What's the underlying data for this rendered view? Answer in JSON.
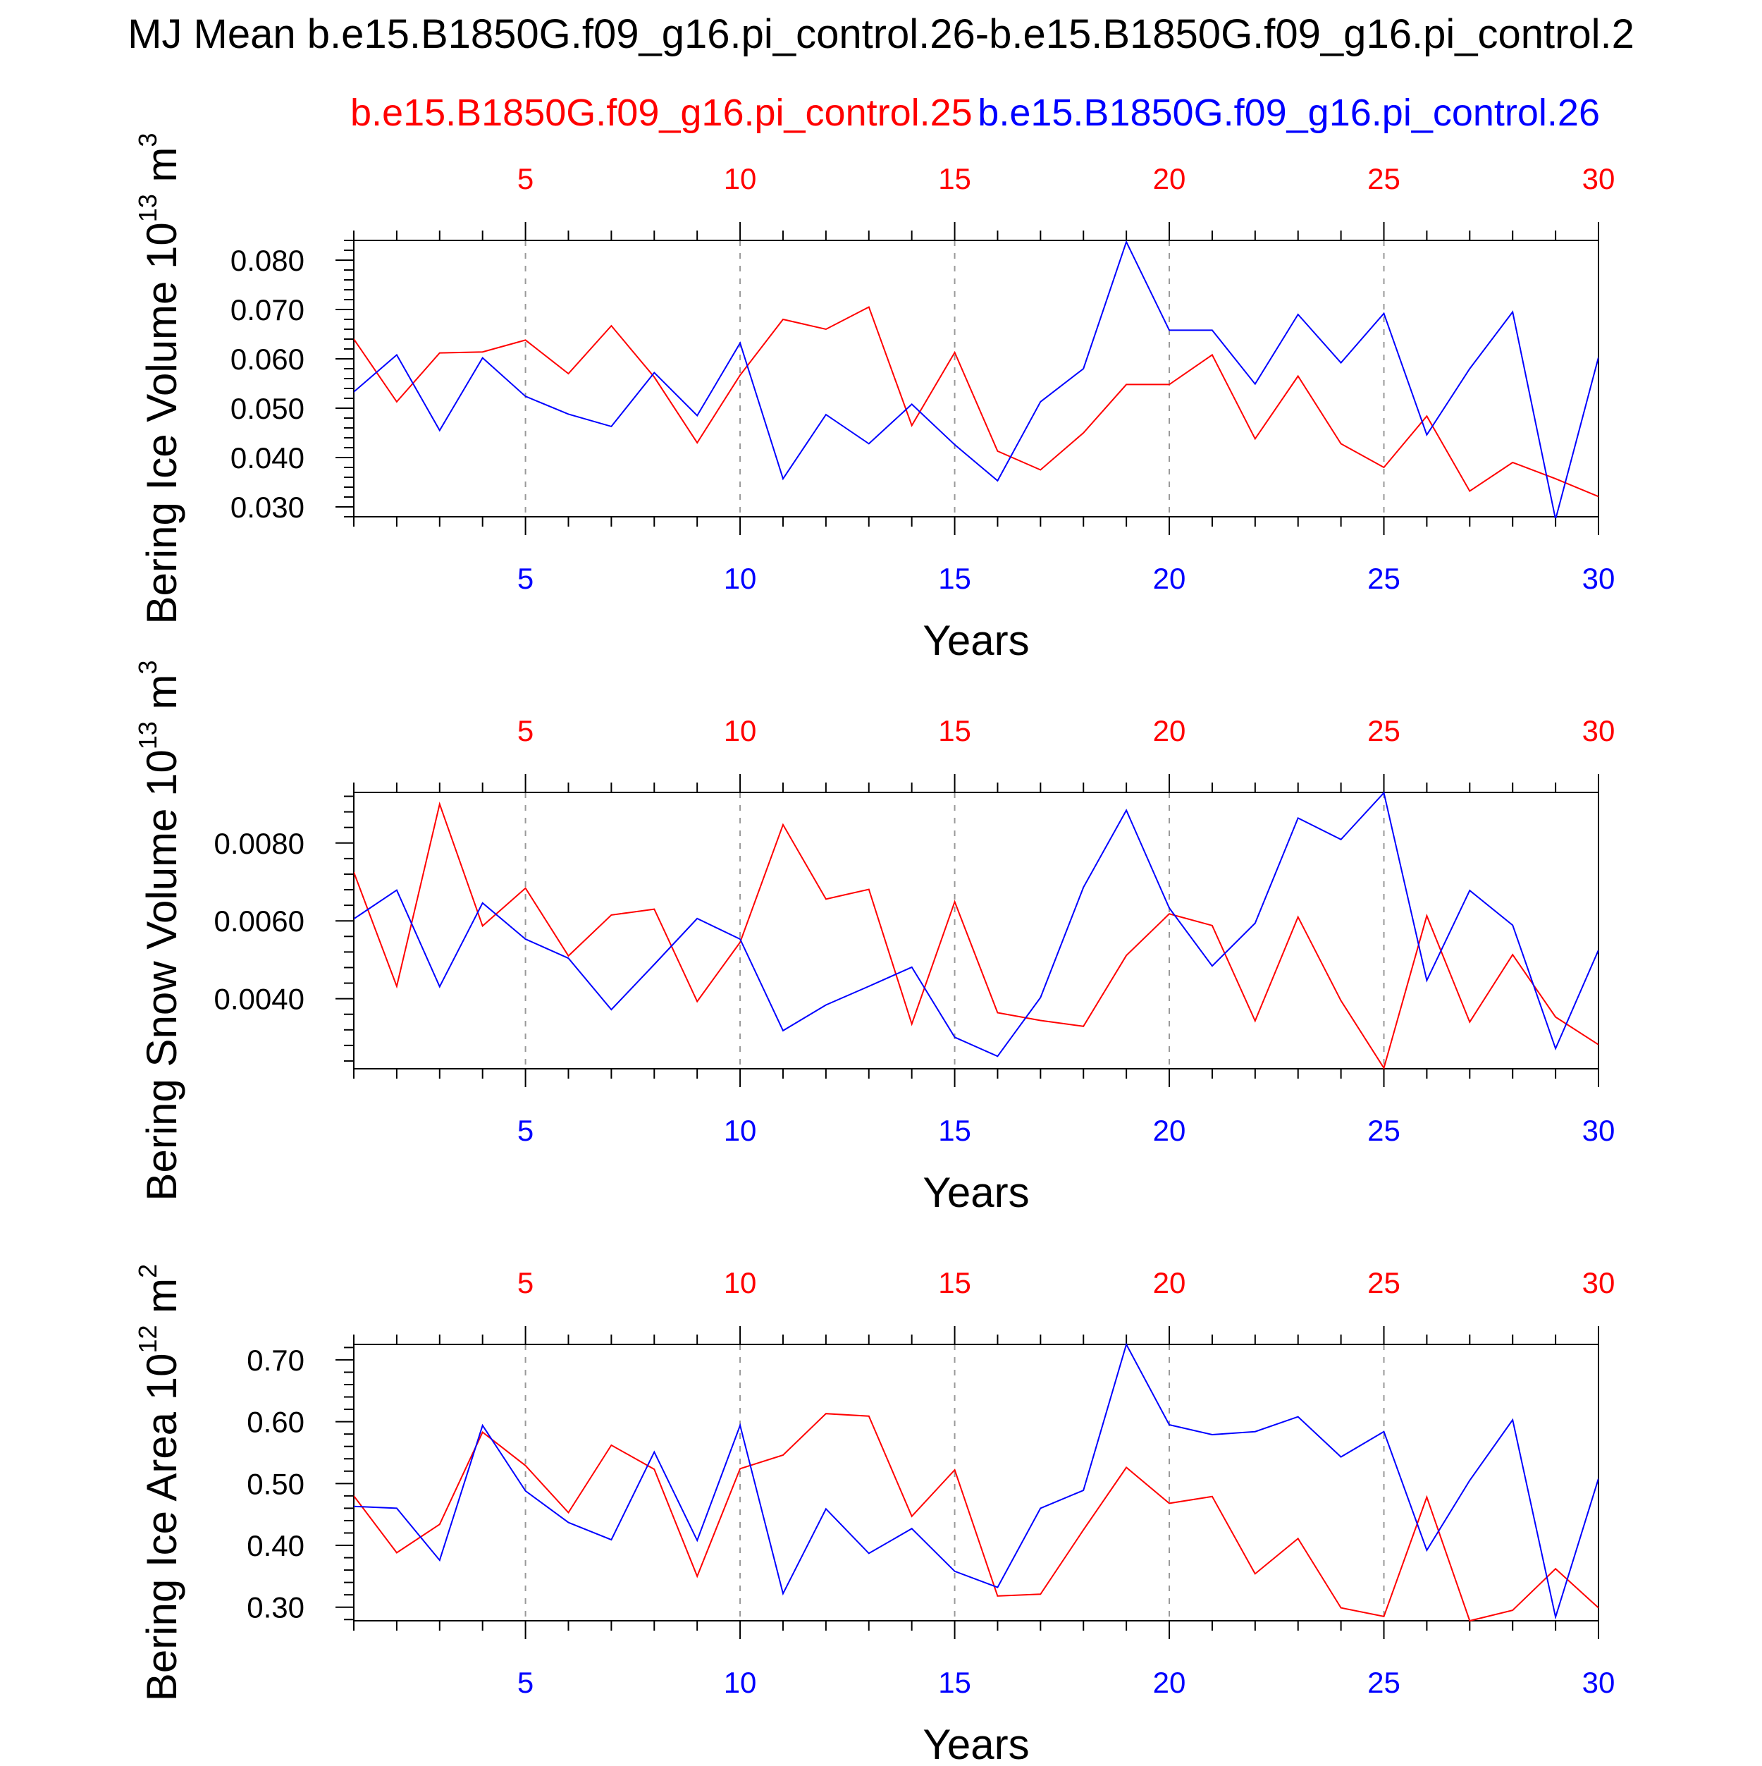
{
  "title": "MJ Mean b.e15.B1850G.f09_g16.pi_control.26-b.e15.B1850G.f09_g16.pi_control.2",
  "legend": {
    "series_a": "b.e15.B1850G.f09_g16.pi_control.25",
    "series_b": "b.e15.B1850G.f09_g16.pi_control.26"
  },
  "colors": {
    "series_a": "#ff0000",
    "series_b": "#0000ff",
    "axis": "#000000",
    "grid": "#999999"
  },
  "chart_data": [
    {
      "type": "line",
      "ylabel": "Bering Ice Volume 10",
      "ylabel_exp": "13",
      "ylabel_unit": "m",
      "ylabel_unit_exp": "3",
      "xlabel": "Years",
      "xlim": [
        1,
        30
      ],
      "ylim": [
        0.028,
        0.084
      ],
      "yticks": [
        0.03,
        0.04,
        0.05,
        0.06,
        0.07,
        0.08
      ],
      "ytick_labels": [
        "0.030",
        "0.040",
        "0.050",
        "0.060",
        "0.070",
        "0.080"
      ],
      "yminor_step": 0.002,
      "xticks": [
        5,
        10,
        15,
        20,
        25,
        30
      ],
      "x": [
        1,
        2,
        3,
        4,
        5,
        6,
        7,
        8,
        9,
        10,
        11,
        12,
        13,
        14,
        15,
        16,
        17,
        18,
        19,
        20,
        21,
        22,
        23,
        24,
        25,
        26,
        27,
        28,
        29,
        30
      ],
      "series": [
        {
          "name": "b.e15.B1850G.f09_g16.pi_control.25",
          "color": "#ff0000",
          "values": [
            0.064,
            0.0513,
            0.0612,
            0.0614,
            0.0638,
            0.057,
            0.0667,
            0.0563,
            0.043,
            0.0567,
            0.068,
            0.066,
            0.0705,
            0.0465,
            0.0613,
            0.0413,
            0.0375,
            0.045,
            0.0548,
            0.0548,
            0.0608,
            0.0438,
            0.0565,
            0.0428,
            0.038,
            0.0484,
            0.0332,
            0.039,
            0.0357,
            0.0321
          ]
        },
        {
          "name": "b.e15.B1850G.f09_g16.pi_control.26",
          "color": "#0000ff",
          "values": [
            0.0533,
            0.0608,
            0.0455,
            0.0602,
            0.0524,
            0.0488,
            0.0463,
            0.0572,
            0.0485,
            0.0632,
            0.0357,
            0.0487,
            0.0428,
            0.0508,
            0.0426,
            0.0353,
            0.0513,
            0.058,
            0.0837,
            0.0658,
            0.0658,
            0.0549,
            0.069,
            0.0592,
            0.0692,
            0.0446,
            0.058,
            0.0695,
            0.0275,
            0.0603
          ]
        }
      ]
    },
    {
      "type": "line",
      "ylabel": "Bering Snow Volume 10",
      "ylabel_exp": "13",
      "ylabel_unit": "m",
      "ylabel_unit_exp": "3",
      "xlabel": "Years",
      "xlim": [
        1,
        30
      ],
      "ylim": [
        0.0022,
        0.0093
      ],
      "yticks": [
        0.004,
        0.006,
        0.008
      ],
      "ytick_labels": [
        "0.0040",
        "0.0060",
        "0.0080"
      ],
      "yminor_step": 0.0004,
      "xticks": [
        5,
        10,
        15,
        20,
        25,
        30
      ],
      "x": [
        1,
        2,
        3,
        4,
        5,
        6,
        7,
        8,
        9,
        10,
        11,
        12,
        13,
        14,
        15,
        16,
        17,
        18,
        19,
        20,
        21,
        22,
        23,
        24,
        25,
        26,
        27,
        28,
        29,
        30
      ],
      "series": [
        {
          "name": "b.e15.B1850G.f09_g16.pi_control.25",
          "color": "#ff0000",
          "values": [
            0.00725,
            0.00432,
            0.009,
            0.00587,
            0.00684,
            0.0051,
            0.00615,
            0.0063,
            0.00393,
            0.00545,
            0.00847,
            0.00656,
            0.00681,
            0.00335,
            0.00649,
            0.00364,
            0.00344,
            0.00329,
            0.00511,
            0.00618,
            0.00588,
            0.00343,
            0.0061,
            0.00395,
            0.00222,
            0.00613,
            0.0034,
            0.00513,
            0.00353,
            0.00282
          ]
        },
        {
          "name": "b.e15.B1850G.f09_g16.pi_control.26",
          "color": "#0000ff",
          "values": [
            0.00605,
            0.00679,
            0.00431,
            0.00646,
            0.00553,
            0.00504,
            0.00372,
            0.00488,
            0.00606,
            0.00553,
            0.00318,
            0.00384,
            0.00432,
            0.00481,
            0.00301,
            0.00252,
            0.00403,
            0.00686,
            0.00884,
            0.00633,
            0.00484,
            0.00594,
            0.00864,
            0.00809,
            0.00929,
            0.00447,
            0.00678,
            0.00589,
            0.00272,
            0.00525
          ]
        }
      ]
    },
    {
      "type": "line",
      "ylabel": "Bering Ice Area 10",
      "ylabel_exp": "12",
      "ylabel_unit": "m",
      "ylabel_unit_exp": "2",
      "xlabel": "Years",
      "xlim": [
        1,
        30
      ],
      "ylim": [
        0.278,
        0.725
      ],
      "yticks": [
        0.3,
        0.4,
        0.5,
        0.6,
        0.7
      ],
      "ytick_labels": [
        "0.30",
        "0.40",
        "0.50",
        "0.60",
        "0.70"
      ],
      "yminor_step": 0.02,
      "xticks": [
        5,
        10,
        15,
        20,
        25,
        30
      ],
      "x": [
        1,
        2,
        3,
        4,
        5,
        6,
        7,
        8,
        9,
        10,
        11,
        12,
        13,
        14,
        15,
        16,
        17,
        18,
        19,
        20,
        21,
        22,
        23,
        24,
        25,
        26,
        27,
        28,
        29,
        30
      ],
      "series": [
        {
          "name": "b.e15.B1850G.f09_g16.pi_control.25",
          "color": "#ff0000",
          "values": [
            0.48,
            0.388,
            0.434,
            0.583,
            0.529,
            0.453,
            0.562,
            0.523,
            0.35,
            0.524,
            0.546,
            0.613,
            0.609,
            0.447,
            0.522,
            0.318,
            0.321,
            0.425,
            0.526,
            0.468,
            0.479,
            0.354,
            0.411,
            0.299,
            0.285,
            0.478,
            0.278,
            0.295,
            0.362,
            0.299
          ]
        },
        {
          "name": "b.e15.B1850G.f09_g16.pi_control.26",
          "color": "#0000ff",
          "values": [
            0.463,
            0.46,
            0.376,
            0.594,
            0.488,
            0.437,
            0.409,
            0.551,
            0.408,
            0.594,
            0.322,
            0.459,
            0.387,
            0.427,
            0.358,
            0.332,
            0.46,
            0.489,
            0.725,
            0.595,
            0.579,
            0.584,
            0.608,
            0.543,
            0.584,
            0.392,
            0.505,
            0.603,
            0.284,
            0.508
          ]
        }
      ]
    }
  ]
}
